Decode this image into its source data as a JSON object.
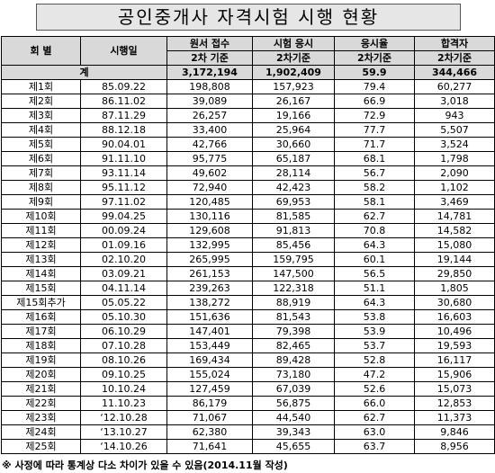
{
  "title": "공인중개사 자격시험 시행 현황",
  "table": {
    "header": [
      "회 별",
      "시행일",
      "원서 접수",
      "시험 응시",
      "응시율",
      "합격자"
    ],
    "subheader": [
      "2차 기준",
      "2차기준",
      "2차기준",
      "2차기준"
    ],
    "total": [
      "계",
      "3,172,194",
      "1,902,409",
      "59.9",
      "344,466"
    ],
    "rows": [
      [
        "제1회",
        "85.09.22",
        "198,808",
        "157,923",
        "79.4",
        "60,277"
      ],
      [
        "제2회",
        "86.11.02",
        "39,089",
        "26,167",
        "66.9",
        "3,018"
      ],
      [
        "제3회",
        "87.11.29",
        "26,257",
        "19,166",
        "72.9",
        "943"
      ],
      [
        "제4회",
        "88.12.18",
        "33,400",
        "25,964",
        "77.7",
        "5,507"
      ],
      [
        "제5회",
        "90.04.01",
        "42,766",
        "30,660",
        "71.7",
        "3,524"
      ],
      [
        "제6회",
        "91.11.10",
        "95,775",
        "65,187",
        "68.1",
        "1,798"
      ],
      [
        "제7회",
        "93.11.14",
        "49,602",
        "28,114",
        "56.7",
        "2,090"
      ],
      [
        "제8회",
        "95.11.12",
        "72,940",
        "42,423",
        "58.2",
        "1,102"
      ],
      [
        "제9회",
        "97.11.02",
        "120,485",
        "69,953",
        "58.1",
        "3,469"
      ],
      [
        "제10회",
        "99.04.25",
        "130,116",
        "81,585",
        "62.7",
        "14,781"
      ],
      [
        "제11회",
        "00.09.24",
        "129,608",
        "91,813",
        "70.8",
        "14,582"
      ],
      [
        "제12회",
        "01.09.16",
        "132,995",
        "85,456",
        "64.3",
        "15,080"
      ],
      [
        "제13회",
        "02.10.20",
        "265,995",
        "159,795",
        "60.1",
        "19,144"
      ],
      [
        "제14회",
        "03.09.21",
        "261,153",
        "147,500",
        "56.5",
        "29,850"
      ],
      [
        "제15회",
        "04.11.14",
        "239,263",
        "122,318",
        "51.1",
        "1,805"
      ],
      [
        "제15회추가",
        "05.05.22",
        "138,272",
        "88,919",
        "64.3",
        "30,680"
      ],
      [
        "제16회",
        "05.10.30",
        "151,636",
        "81,543",
        "53.8",
        "16,603"
      ],
      [
        "제17회",
        "06.10.29",
        "147,401",
        "79,398",
        "53.9",
        "10,496"
      ],
      [
        "제18회",
        "07.10.28",
        "153,449",
        "82,465",
        "53.7",
        "19,593"
      ],
      [
        "제19회",
        "08.10.26",
        "169,434",
        "89,428",
        "52.8",
        "16,117"
      ],
      [
        "제20회",
        "09.10.25",
        "155,024",
        "73,180",
        "47.2",
        "15,906"
      ],
      [
        "제21회",
        "10.10.24",
        "127,459",
        "67,039",
        "52.6",
        "15,073"
      ],
      [
        "제22회",
        "11.10.23",
        "86,179",
        "56,875",
        "66.0",
        "12,853"
      ],
      [
        "제23회",
        "‘12.10.28",
        "71,067",
        "44,540",
        "62.7",
        "11,373"
      ],
      [
        "제24회",
        "‘13.10.27",
        "62,380",
        "39,343",
        "63.0",
        "9,846"
      ],
      [
        "제25회",
        "‘14.10.26",
        "71,641",
        "45,655",
        "63.7",
        "8,956"
      ]
    ]
  },
  "footnote": "※ 사정에 따라 통계상 다소 차이가 있을 수 있음(2014.11월 작성)"
}
